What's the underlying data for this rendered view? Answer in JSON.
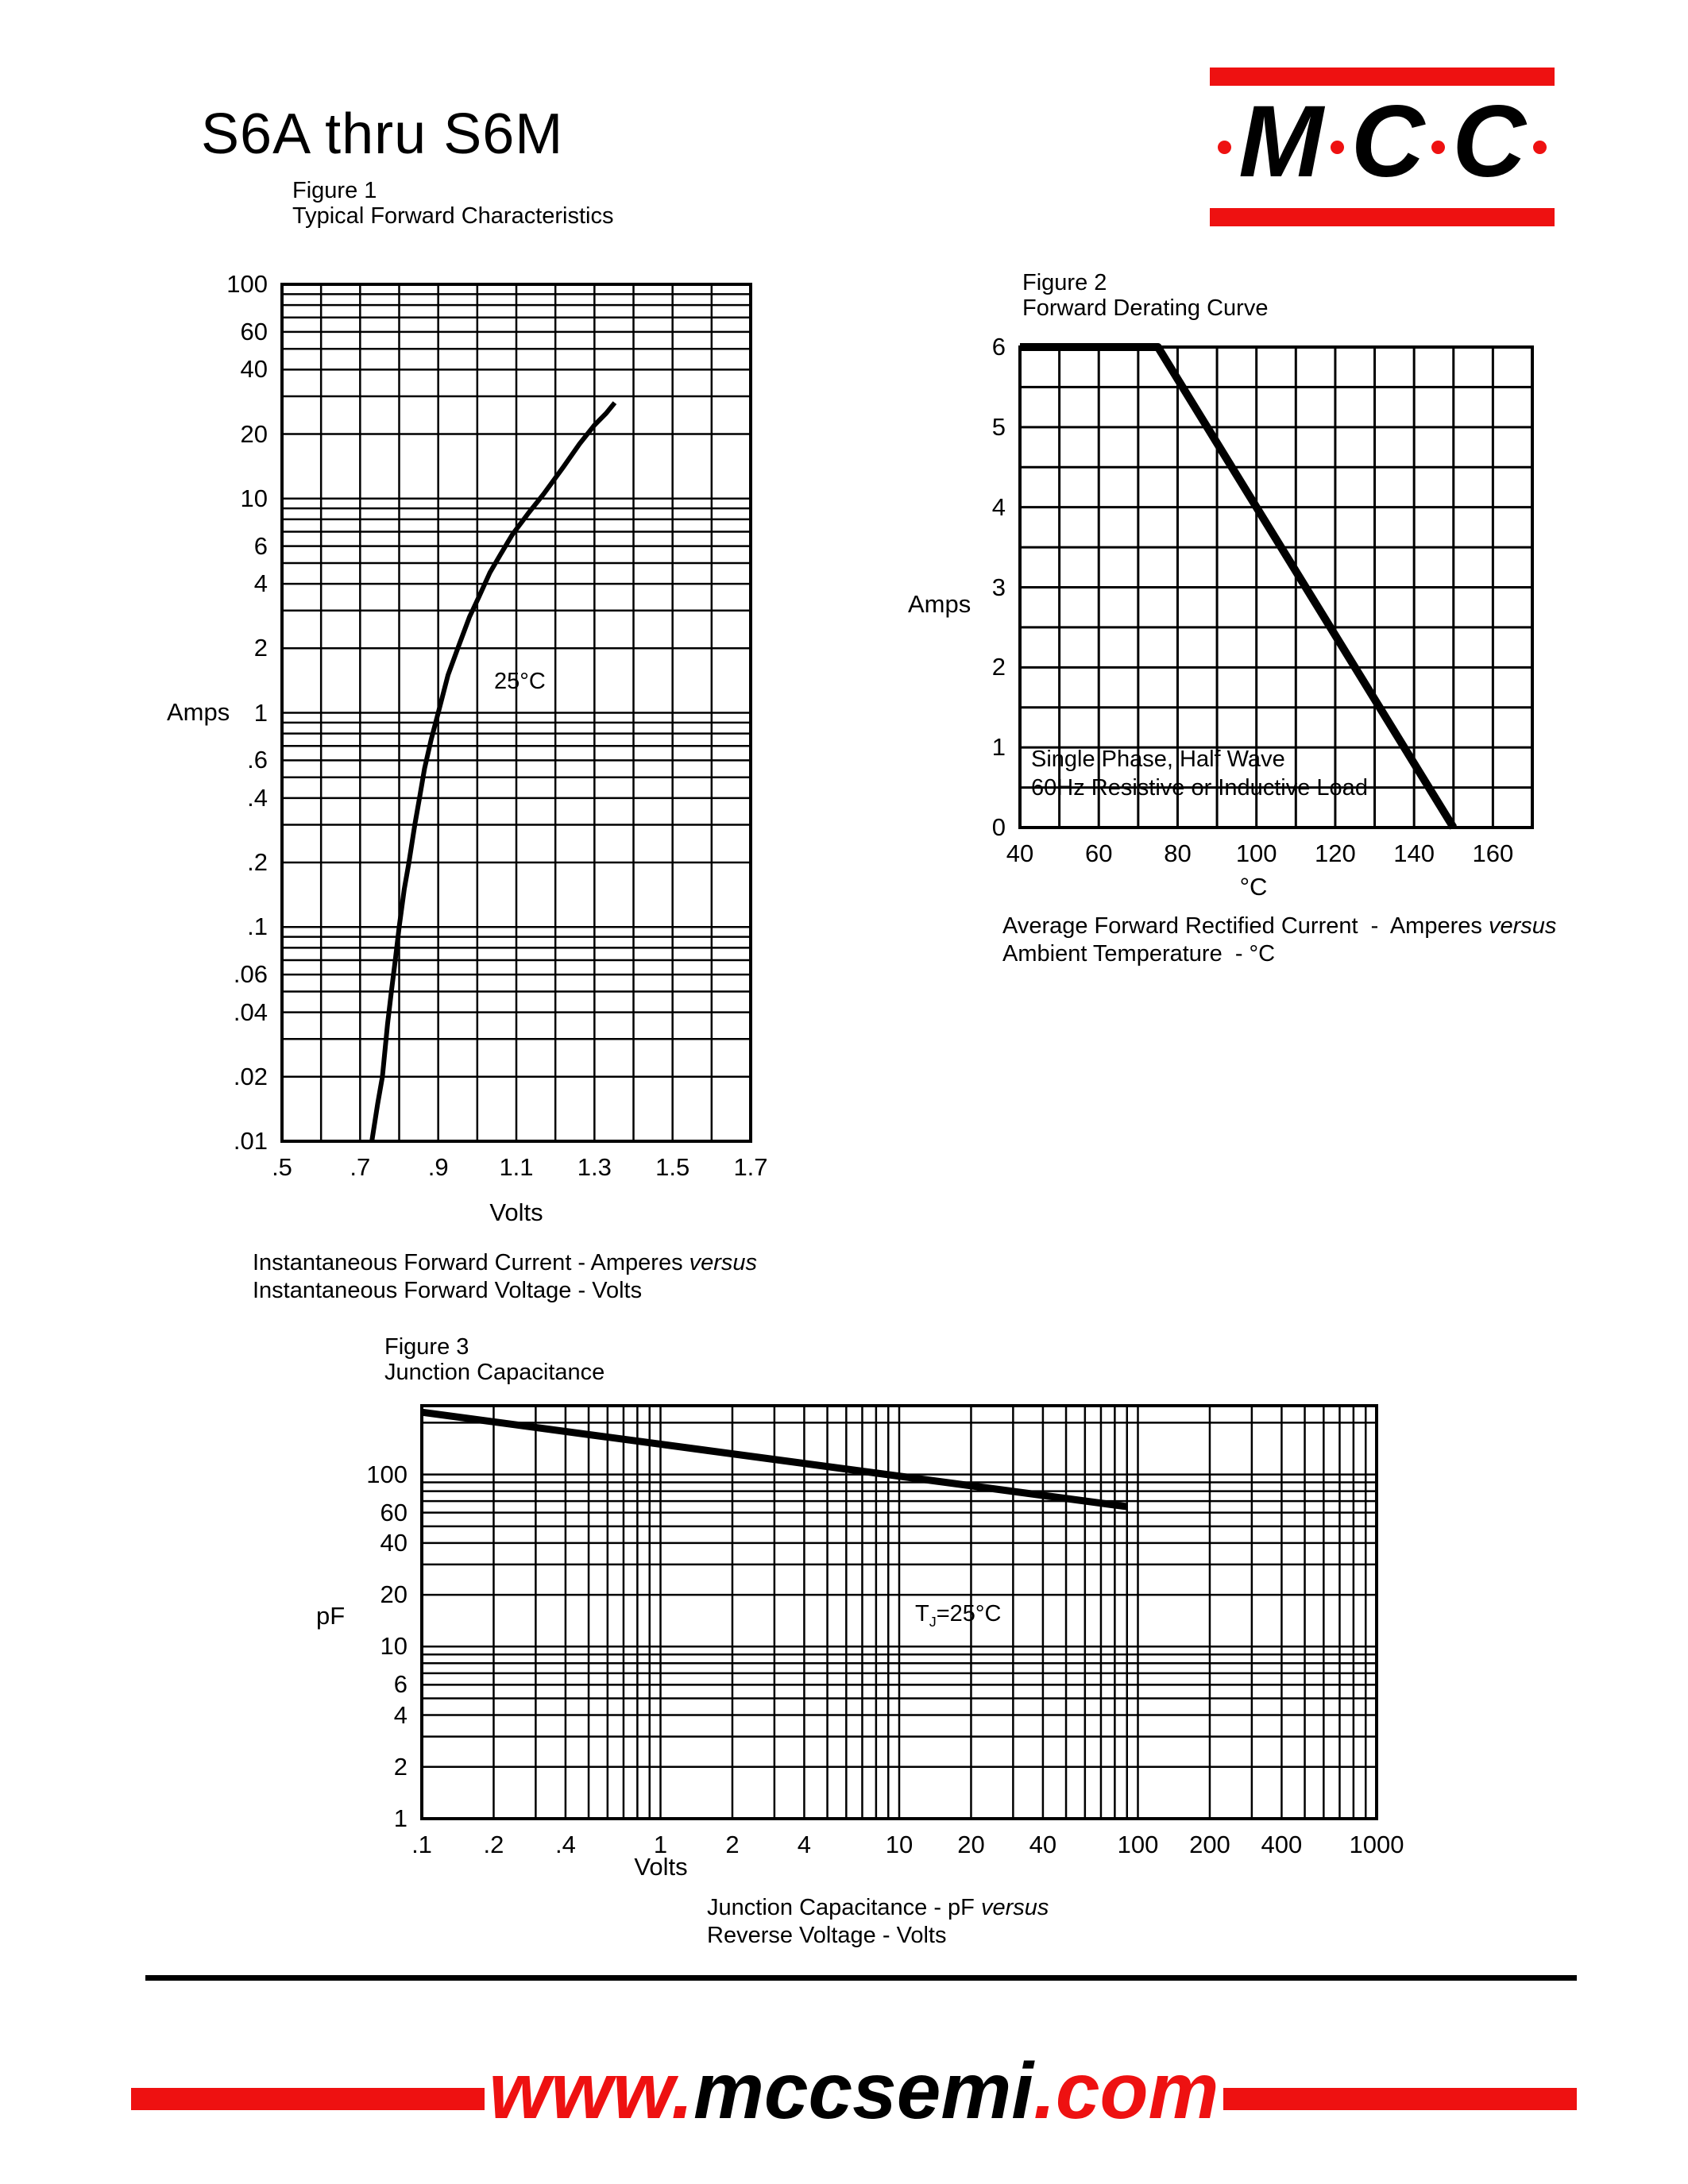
{
  "header": {
    "part_title": "S6A thru S6M"
  },
  "logo": {
    "letters": [
      "M",
      "C",
      "C"
    ]
  },
  "footer": {
    "url_prefix": "www.",
    "url_mid": "mccsemi",
    "url_suffix": ".com"
  },
  "colors": {
    "red": "#ee1111",
    "black": "#000000"
  },
  "chart_data": [
    {
      "id": "fig1",
      "type": "line",
      "figure_label": "Figure 1",
      "figure_title": "Typical Forward Characteristics",
      "x_axis": {
        "label": "Volts",
        "scale": "linear",
        "range": [
          0.5,
          1.7
        ],
        "grid_step": 0.1,
        "tick_values": [
          0.5,
          0.7,
          0.9,
          1.1,
          1.3,
          1.5,
          1.7
        ],
        "tick_labels": [
          ".5",
          ".7",
          ".9",
          "1.1",
          "1.3",
          "1.5",
          "1.7"
        ]
      },
      "y_axis": {
        "label": "Amps",
        "scale": "log",
        "range": [
          0.01,
          100
        ],
        "tick_values": [
          100,
          60,
          40,
          20,
          10,
          6,
          4,
          2,
          1,
          0.6,
          0.4,
          0.2,
          0.1,
          0.06,
          0.04,
          0.02,
          0.01
        ],
        "tick_labels": [
          "100",
          "60",
          "40",
          "20",
          "10",
          "6",
          "4",
          "2",
          "1",
          ".6",
          ".4",
          ".2",
          ".1",
          ".06",
          ".04",
          ".02",
          ".01"
        ]
      },
      "annotation": {
        "text": "25°C"
      },
      "caption": {
        "line1": "Instantaneous Forward Current - Amperes ",
        "line1_italic": "versus",
        "line2": "Instantaneous Forward Voltage - Volts"
      },
      "grid": true,
      "series": [
        {
          "name": "typical-forward-characteristic-25C",
          "points": [
            [
              0.73,
              0.01
            ],
            [
              0.745,
              0.015
            ],
            [
              0.757,
              0.02
            ],
            [
              0.77,
              0.035
            ],
            [
              0.78,
              0.05
            ],
            [
              0.79,
              0.07
            ],
            [
              0.8,
              0.1
            ],
            [
              0.813,
              0.15
            ],
            [
              0.825,
              0.2
            ],
            [
              0.84,
              0.3
            ],
            [
              0.852,
              0.4
            ],
            [
              0.865,
              0.55
            ],
            [
              0.882,
              0.75
            ],
            [
              0.9,
              1.0
            ],
            [
              0.925,
              1.5
            ],
            [
              0.95,
              2.0
            ],
            [
              0.98,
              2.8
            ],
            [
              1.005,
              3.5
            ],
            [
              1.032,
              4.5
            ],
            [
              1.06,
              5.5
            ],
            [
              1.09,
              6.8
            ],
            [
              1.13,
              8.5
            ],
            [
              1.17,
              10.5
            ],
            [
              1.22,
              14
            ],
            [
              1.262,
              18
            ],
            [
              1.3,
              22
            ],
            [
              1.33,
              25
            ],
            [
              1.352,
              28
            ]
          ]
        }
      ]
    },
    {
      "id": "fig2",
      "type": "line",
      "figure_label": "Figure 2",
      "figure_title": "Forward Derating Curve",
      "x_axis": {
        "label": "°C",
        "scale": "linear",
        "range": [
          40,
          170
        ],
        "grid_step": 10,
        "tick_values": [
          40,
          60,
          80,
          100,
          120,
          140,
          160
        ],
        "tick_labels": [
          "40",
          "60",
          "80",
          "100",
          "120",
          "140",
          "160"
        ]
      },
      "y_axis": {
        "label": "Amps",
        "scale": "linear",
        "range": [
          0,
          6
        ],
        "grid_step": 0.5,
        "tick_values": [
          6,
          5,
          4,
          3,
          2,
          1,
          0
        ],
        "tick_labels": [
          "6",
          "5",
          "4",
          "3",
          "2",
          "1",
          "0"
        ]
      },
      "annotation": {
        "line1": "Single Phase, Half Wave",
        "line2": "60Hz Resistive or Inductive Load"
      },
      "caption": {
        "line1": "Average Forward Rectified Current  -  Amperes ",
        "line1_italic": "versus",
        "line2": "Ambient Temperature  - °C"
      },
      "grid": true,
      "series": [
        {
          "name": "forward-derating-curve",
          "points": [
            [
              40,
              6
            ],
            [
              75,
              6
            ],
            [
              150,
              0
            ]
          ]
        }
      ]
    },
    {
      "id": "fig3",
      "type": "line",
      "figure_label": "Figure 3",
      "figure_title": "Junction Capacitance",
      "x_axis": {
        "label": "Volts",
        "scale": "log",
        "range": [
          0.1,
          1000
        ],
        "tick_values": [
          0.1,
          0.2,
          0.4,
          1,
          2,
          4,
          10,
          20,
          40,
          100,
          200,
          400,
          1000
        ],
        "tick_labels": [
          ".1",
          ".2",
          ".4",
          "1",
          "2",
          "4",
          "10",
          "20",
          "40",
          "100",
          "200",
          "400",
          "1000"
        ]
      },
      "y_axis": {
        "label": "pF",
        "scale": "log",
        "range": [
          1,
          251
        ],
        "tick_values": [
          100,
          60,
          40,
          20,
          10,
          6,
          4,
          2,
          1
        ],
        "tick_labels": [
          "100",
          "60",
          "40",
          "20",
          "10",
          "6",
          "4",
          "2",
          "1"
        ]
      },
      "annotation": {
        "t": "T",
        "sub": "J",
        "rest": "=25°C"
      },
      "caption": {
        "line1": "Junction Capacitance - pF ",
        "line1_italic": "versus",
        "line2": "Reverse Voltage - Volts"
      },
      "grid": true,
      "series": [
        {
          "name": "junction-capacitance-vs-reverse-voltage",
          "points": [
            [
              0.1,
              230
            ],
            [
              90,
              65
            ]
          ]
        }
      ]
    }
  ]
}
